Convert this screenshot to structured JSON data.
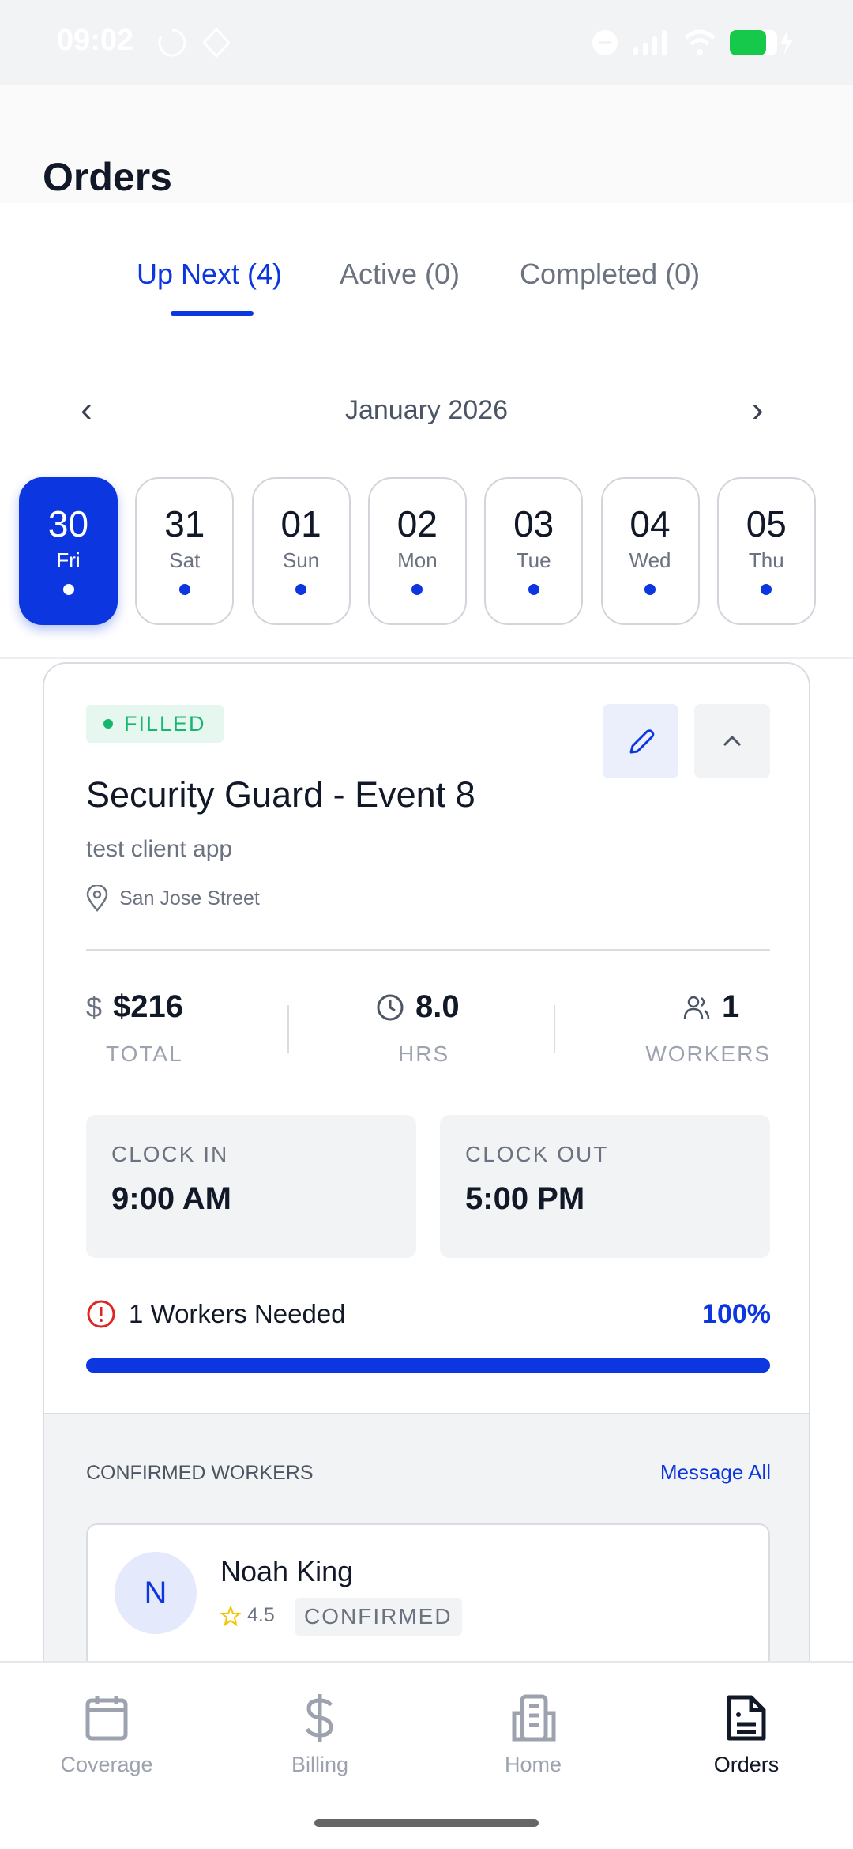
{
  "status_bar": {
    "time": "09:02",
    "battery_color": "#16c94a"
  },
  "header": {
    "title": "Orders"
  },
  "tabs": [
    {
      "label": "Up Next (4)",
      "active": true
    },
    {
      "label": "Active (0)"
    },
    {
      "label": "Completed (0)"
    }
  ],
  "calendar": {
    "month": "January 2026",
    "days": [
      {
        "num": "30",
        "dow": "Fri",
        "selected": true
      },
      {
        "num": "31",
        "dow": "Sat"
      },
      {
        "num": "01",
        "dow": "Sun"
      },
      {
        "num": "02",
        "dow": "Mon"
      },
      {
        "num": "03",
        "dow": "Tue"
      },
      {
        "num": "04",
        "dow": "Wed"
      },
      {
        "num": "05",
        "dow": "Thu"
      }
    ]
  },
  "order": {
    "status": "FILLED",
    "title": "Security Guard - Event 8",
    "client": "test client app",
    "location": "San Jose Street",
    "total": "$216",
    "total_label": "TOTAL",
    "hours": "8.0",
    "hours_label": "HRS",
    "workers": "1",
    "workers_label": "WORKERS",
    "clock_in_label": "CLOCK IN",
    "clock_in": "9:00 AM",
    "clock_out_label": "CLOCK OUT",
    "clock_out": "5:00 PM",
    "needed": "1 Workers Needed",
    "progress": "100%",
    "progress_value": 100,
    "confirmed_label": "CONFIRMED WORKERS",
    "message_all": "Message All",
    "worker": {
      "initial": "N",
      "name": "Noah King",
      "rating": "4.5",
      "status": "CONFIRMED"
    }
  },
  "nav": [
    {
      "label": "Coverage",
      "icon": "calendar-icon"
    },
    {
      "label": "Billing",
      "icon": "dollar-icon"
    },
    {
      "label": "Home",
      "icon": "building-icon"
    },
    {
      "label": "Orders",
      "icon": "document-icon",
      "active": true
    }
  ],
  "colors": {
    "accent": "#0b36e0",
    "success": "#16b670",
    "danger": "#e02424"
  }
}
